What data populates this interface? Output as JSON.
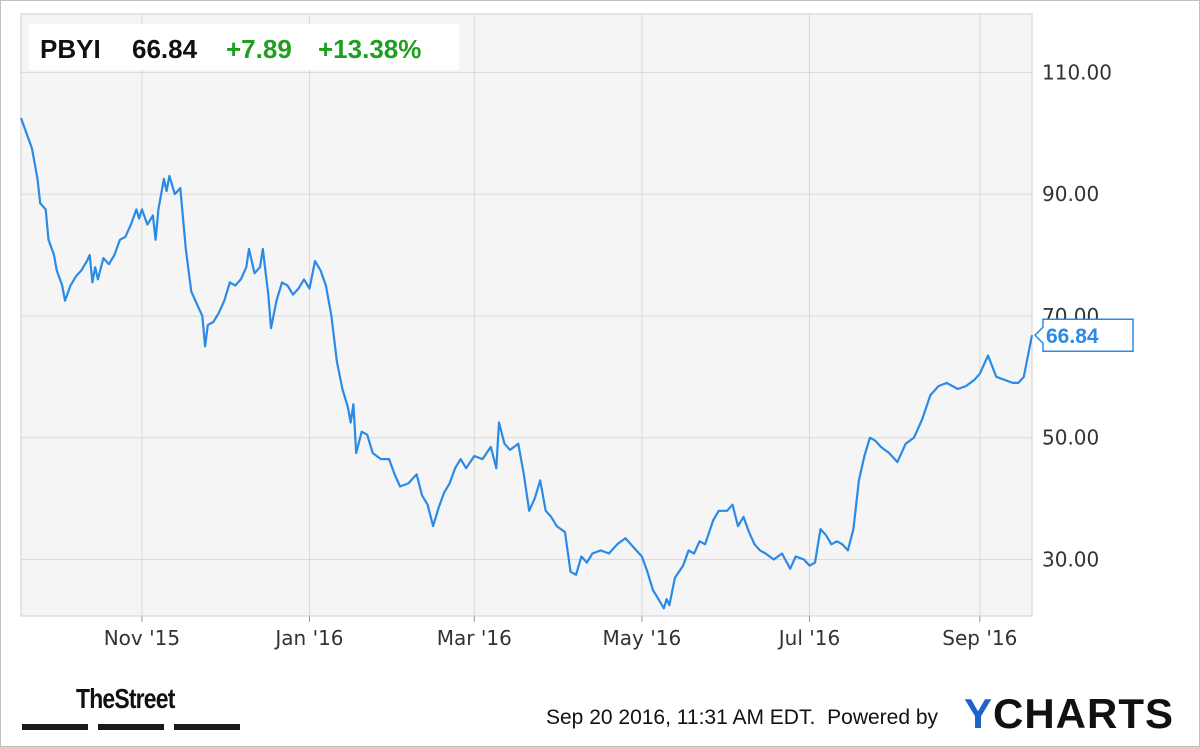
{
  "header": {
    "ticker": "PBYI",
    "price": "66.84",
    "change": "+7.89",
    "change_pct": "+13.38%",
    "change_color": "#1f9e1f"
  },
  "last_value_label": "66.84",
  "footer": {
    "timestamp": "Sep 20 2016, 11:31 AM EDT.",
    "powered_by": "Powered by",
    "brand_y": "Y",
    "brand_rest": "CHARTS",
    "brand_color": "#1e64c8",
    "publisher": "TheStreet"
  },
  "chart_data": {
    "type": "line",
    "series": [
      {
        "color": "#2b8ae6",
        "points": [
          [
            "2015-09-18",
            102.5
          ],
          [
            "2015-09-20",
            100.0
          ],
          [
            "2015-09-22",
            97.5
          ],
          [
            "2015-09-24",
            92.5
          ],
          [
            "2015-09-25",
            88.5
          ],
          [
            "2015-09-27",
            87.5
          ],
          [
            "2015-09-28",
            82.5
          ],
          [
            "2015-09-30",
            80.0
          ],
          [
            "2015-10-01",
            77.5
          ],
          [
            "2015-10-03",
            75.0
          ],
          [
            "2015-10-04",
            72.5
          ],
          [
            "2015-10-06",
            75.0
          ],
          [
            "2015-10-08",
            76.5
          ],
          [
            "2015-10-10",
            77.5
          ],
          [
            "2015-10-12",
            79.0
          ],
          [
            "2015-10-13",
            80.0
          ],
          [
            "2015-10-14",
            75.5
          ],
          [
            "2015-10-15",
            78.0
          ],
          [
            "2015-10-16",
            76.0
          ],
          [
            "2015-10-18",
            79.5
          ],
          [
            "2015-10-20",
            78.5
          ],
          [
            "2015-10-22",
            80.0
          ],
          [
            "2015-10-24",
            82.5
          ],
          [
            "2015-10-26",
            83.0
          ],
          [
            "2015-10-28",
            85.0
          ],
          [
            "2015-10-30",
            87.5
          ],
          [
            "2015-10-31",
            86.0
          ],
          [
            "2015-11-01",
            87.5
          ],
          [
            "2015-11-03",
            85.0
          ],
          [
            "2015-11-05",
            86.5
          ],
          [
            "2015-11-06",
            82.5
          ],
          [
            "2015-11-07",
            87.5
          ],
          [
            "2015-11-09",
            92.5
          ],
          [
            "2015-11-10",
            90.5
          ],
          [
            "2015-11-11",
            93.0
          ],
          [
            "2015-11-13",
            90.0
          ],
          [
            "2015-11-15",
            91.0
          ],
          [
            "2015-11-17",
            81.0
          ],
          [
            "2015-11-19",
            74.0
          ],
          [
            "2015-11-21",
            72.0
          ],
          [
            "2015-11-23",
            70.0
          ],
          [
            "2015-11-24",
            65.0
          ],
          [
            "2015-11-25",
            68.5
          ],
          [
            "2015-11-27",
            69.0
          ],
          [
            "2015-11-29",
            70.5
          ],
          [
            "2015-12-01",
            72.5
          ],
          [
            "2015-12-03",
            75.5
          ],
          [
            "2015-12-05",
            75.0
          ],
          [
            "2015-12-07",
            76.0
          ],
          [
            "2015-12-09",
            78.0
          ],
          [
            "2015-12-10",
            81.0
          ],
          [
            "2015-12-12",
            77.0
          ],
          [
            "2015-12-14",
            78.0
          ],
          [
            "2015-12-15",
            81.0
          ],
          [
            "2015-12-17",
            73.5
          ],
          [
            "2015-12-18",
            68.0
          ],
          [
            "2015-12-20",
            72.5
          ],
          [
            "2015-12-22",
            75.5
          ],
          [
            "2015-12-24",
            75.0
          ],
          [
            "2015-12-26",
            73.5
          ],
          [
            "2015-12-28",
            74.5
          ],
          [
            "2015-12-30",
            76.0
          ],
          [
            "2016-01-01",
            74.5
          ],
          [
            "2016-01-03",
            79.0
          ],
          [
            "2016-01-05",
            77.5
          ],
          [
            "2016-01-07",
            75.0
          ],
          [
            "2016-01-09",
            70.0
          ],
          [
            "2016-01-11",
            62.5
          ],
          [
            "2016-01-13",
            58.0
          ],
          [
            "2016-01-15",
            55.0
          ],
          [
            "2016-01-16",
            52.5
          ],
          [
            "2016-01-17",
            55.5
          ],
          [
            "2016-01-18",
            47.5
          ],
          [
            "2016-01-20",
            51.0
          ],
          [
            "2016-01-22",
            50.5
          ],
          [
            "2016-01-24",
            47.5
          ],
          [
            "2016-01-27",
            46.5
          ],
          [
            "2016-01-30",
            46.5
          ],
          [
            "2016-02-01",
            44.0
          ],
          [
            "2016-02-03",
            42.0
          ],
          [
            "2016-02-06",
            42.5
          ],
          [
            "2016-02-09",
            44.0
          ],
          [
            "2016-02-11",
            40.5
          ],
          [
            "2016-02-13",
            39.0
          ],
          [
            "2016-02-15",
            35.5
          ],
          [
            "2016-02-17",
            38.5
          ],
          [
            "2016-02-19",
            41.0
          ],
          [
            "2016-02-21",
            42.5
          ],
          [
            "2016-02-23",
            45.0
          ],
          [
            "2016-02-25",
            46.5
          ],
          [
            "2016-02-27",
            45.0
          ],
          [
            "2016-03-01",
            47.0
          ],
          [
            "2016-03-04",
            46.5
          ],
          [
            "2016-03-07",
            48.5
          ],
          [
            "2016-03-09",
            45.0
          ],
          [
            "2016-03-10",
            52.5
          ],
          [
            "2016-03-12",
            49.0
          ],
          [
            "2016-03-14",
            48.0
          ],
          [
            "2016-03-17",
            49.0
          ],
          [
            "2016-03-19",
            44.0
          ],
          [
            "2016-03-21",
            38.0
          ],
          [
            "2016-03-23",
            40.0
          ],
          [
            "2016-03-25",
            43.0
          ],
          [
            "2016-03-27",
            38.0
          ],
          [
            "2016-03-29",
            37.0
          ],
          [
            "2016-03-31",
            35.5
          ],
          [
            "2016-04-03",
            34.5
          ],
          [
            "2016-04-05",
            28.0
          ],
          [
            "2016-04-07",
            27.5
          ],
          [
            "2016-04-09",
            30.5
          ],
          [
            "2016-04-11",
            29.5
          ],
          [
            "2016-04-13",
            31.0
          ],
          [
            "2016-04-16",
            31.5
          ],
          [
            "2016-04-19",
            31.0
          ],
          [
            "2016-04-22",
            32.5
          ],
          [
            "2016-04-25",
            33.5
          ],
          [
            "2016-04-28",
            32.0
          ],
          [
            "2016-05-01",
            30.5
          ],
          [
            "2016-05-03",
            28.0
          ],
          [
            "2016-05-05",
            25.0
          ],
          [
            "2016-05-07",
            23.5
          ],
          [
            "2016-05-09",
            22.0
          ],
          [
            "2016-05-10",
            23.5
          ],
          [
            "2016-05-11",
            22.5
          ],
          [
            "2016-05-13",
            27.0
          ],
          [
            "2016-05-16",
            29.0
          ],
          [
            "2016-05-18",
            31.5
          ],
          [
            "2016-05-20",
            31.0
          ],
          [
            "2016-05-22",
            33.0
          ],
          [
            "2016-05-24",
            32.5
          ],
          [
            "2016-05-27",
            36.5
          ],
          [
            "2016-05-29",
            38.0
          ],
          [
            "2016-06-01",
            38.0
          ],
          [
            "2016-06-03",
            39.0
          ],
          [
            "2016-06-05",
            35.5
          ],
          [
            "2016-06-07",
            37.0
          ],
          [
            "2016-06-09",
            34.5
          ],
          [
            "2016-06-11",
            32.5
          ],
          [
            "2016-06-13",
            31.5
          ],
          [
            "2016-06-15",
            31.0
          ],
          [
            "2016-06-18",
            30.0
          ],
          [
            "2016-06-21",
            31.0
          ],
          [
            "2016-06-24",
            28.5
          ],
          [
            "2016-06-26",
            30.5
          ],
          [
            "2016-06-29",
            30.0
          ],
          [
            "2016-07-01",
            29.0
          ],
          [
            "2016-07-03",
            29.5
          ],
          [
            "2016-07-05",
            35.0
          ],
          [
            "2016-07-07",
            34.0
          ],
          [
            "2016-07-09",
            32.5
          ],
          [
            "2016-07-11",
            33.0
          ],
          [
            "2016-07-13",
            32.5
          ],
          [
            "2016-07-15",
            31.5
          ],
          [
            "2016-07-17",
            35.0
          ],
          [
            "2016-07-19",
            43.0
          ],
          [
            "2016-07-21",
            47.0
          ],
          [
            "2016-07-23",
            50.0
          ],
          [
            "2016-07-25",
            49.5
          ],
          [
            "2016-07-27",
            48.5
          ],
          [
            "2016-07-30",
            47.5
          ],
          [
            "2016-08-02",
            46.0
          ],
          [
            "2016-08-05",
            49.0
          ],
          [
            "2016-08-08",
            50.0
          ],
          [
            "2016-08-11",
            53.0
          ],
          [
            "2016-08-14",
            57.0
          ],
          [
            "2016-08-17",
            58.5
          ],
          [
            "2016-08-20",
            59.0
          ],
          [
            "2016-08-24",
            58.0
          ],
          [
            "2016-08-27",
            58.5
          ],
          [
            "2016-08-30",
            59.5
          ],
          [
            "2016-09-01",
            60.5
          ],
          [
            "2016-09-04",
            63.5
          ],
          [
            "2016-09-07",
            60.0
          ],
          [
            "2016-09-10",
            59.5
          ],
          [
            "2016-09-13",
            59.0
          ],
          [
            "2016-09-15",
            59.0
          ],
          [
            "2016-09-17",
            60.0
          ],
          [
            "2016-09-20",
            66.84
          ]
        ]
      }
    ],
    "x_range": [
      "2015-09-18",
      "2016-09-20"
    ],
    "x_ticks": [
      {
        "date": "2015-11-01",
        "label": "Nov '15"
      },
      {
        "date": "2016-01-01",
        "label": "Jan '16"
      },
      {
        "date": "2016-03-01",
        "label": "Mar '16"
      },
      {
        "date": "2016-05-01",
        "label": "May '16"
      },
      {
        "date": "2016-07-01",
        "label": "Jul '16"
      },
      {
        "date": "2016-09-01",
        "label": "Sep '16"
      }
    ],
    "y_ticks": [
      {
        "value": 30,
        "label": "30.00"
      },
      {
        "value": 50,
        "label": "50.00"
      },
      {
        "value": 70,
        "label": "70.00"
      },
      {
        "value": 90,
        "label": "90.00"
      },
      {
        "value": 110,
        "label": "110.00"
      }
    ],
    "ylim": [
      20.73,
      119.58
    ],
    "grid": true,
    "background": "#f5f5f5"
  }
}
